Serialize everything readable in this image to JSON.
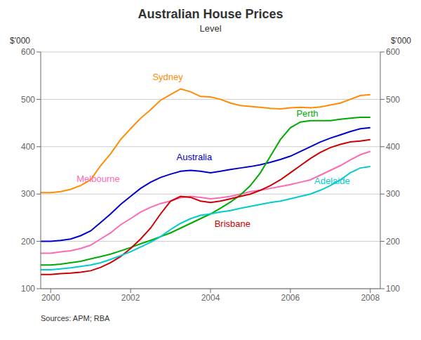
{
  "chart_data": {
    "type": "line",
    "title": "Australian House Prices",
    "subtitle": "Level",
    "ylabel": "$'000",
    "y2label": "$'000",
    "source": "Sources: APM; RBA",
    "xlim": [
      1999.75,
      2008.25
    ],
    "ylim": [
      100,
      600
    ],
    "y2lim": [
      100,
      600
    ],
    "xticks": [
      2000,
      2002,
      2004,
      2006,
      2008
    ],
    "yticks": [
      100,
      200,
      300,
      400,
      500,
      600
    ],
    "y2ticks": [
      100,
      200,
      300,
      400,
      500,
      600
    ],
    "grid": "y",
    "x": [
      1999.75,
      2000.0,
      2000.25,
      2000.5,
      2000.75,
      2001.0,
      2001.25,
      2001.5,
      2001.75,
      2002.0,
      2002.25,
      2002.5,
      2002.75,
      2003.0,
      2003.25,
      2003.5,
      2003.75,
      2004.0,
      2004.25,
      2004.5,
      2004.75,
      2005.0,
      2005.25,
      2005.5,
      2005.75,
      2006.0,
      2006.25,
      2006.5,
      2006.75,
      2007.0,
      2007.25,
      2007.5,
      2007.75,
      2008.0
    ],
    "series": [
      {
        "name": "Sydney",
        "color": "#FF8C00",
        "values": [
          303,
          303,
          305,
          310,
          318,
          330,
          360,
          385,
          415,
          438,
          460,
          478,
          498,
          510,
          522,
          516,
          506,
          505,
          500,
          492,
          487,
          485,
          483,
          481,
          480,
          482,
          483,
          482,
          484,
          488,
          492,
          500,
          508,
          510
        ]
      },
      {
        "name": "Melbourne",
        "color": "#FF69B4",
        "values": [
          175,
          175,
          178,
          180,
          185,
          192,
          205,
          218,
          235,
          248,
          262,
          272,
          280,
          285,
          292,
          295,
          293,
          290,
          292,
          295,
          300,
          305,
          308,
          312,
          316,
          320,
          325,
          330,
          340,
          350,
          360,
          372,
          383,
          390
        ]
      },
      {
        "name": "Australia",
        "color": "#0000CD",
        "values": [
          200,
          200,
          202,
          205,
          212,
          222,
          240,
          258,
          278,
          295,
          312,
          325,
          335,
          342,
          348,
          350,
          348,
          345,
          348,
          352,
          355,
          358,
          362,
          367,
          373,
          380,
          390,
          400,
          410,
          418,
          425,
          432,
          438,
          440
        ]
      },
      {
        "name": "Perth",
        "color": "#00AA00",
        "values": [
          150,
          150,
          152,
          155,
          158,
          163,
          168,
          173,
          180,
          187,
          195,
          202,
          210,
          218,
          228,
          238,
          248,
          258,
          270,
          283,
          298,
          318,
          345,
          380,
          415,
          440,
          452,
          455,
          455,
          455,
          458,
          460,
          462,
          462
        ]
      },
      {
        "name": "Brisbane",
        "color": "#CC0000",
        "values": [
          130,
          130,
          132,
          133,
          135,
          138,
          145,
          155,
          168,
          185,
          205,
          228,
          258,
          285,
          295,
          293,
          285,
          282,
          285,
          290,
          295,
          300,
          308,
          318,
          330,
          345,
          360,
          375,
          388,
          398,
          405,
          410,
          412,
          415
        ]
      },
      {
        "name": "Adelaide",
        "color": "#00CCCC",
        "values": [
          140,
          140,
          142,
          144,
          147,
          150,
          155,
          162,
          170,
          178,
          188,
          198,
          210,
          225,
          238,
          248,
          255,
          258,
          262,
          265,
          270,
          274,
          278,
          282,
          285,
          290,
          295,
          300,
          308,
          318,
          330,
          345,
          355,
          358
        ]
      }
    ],
    "annotations": [
      {
        "text": "Sydney",
        "x": 2002.55,
        "y": 537,
        "color": "#FF8C00"
      },
      {
        "text": "Melbourne",
        "x": 2000.65,
        "y": 322,
        "color": "#FF69B4"
      },
      {
        "text": "Australia",
        "x": 2003.15,
        "y": 368,
        "color": "#0000CD"
      },
      {
        "text": "Perth",
        "x": 2006.15,
        "y": 460,
        "color": "#00AA00"
      },
      {
        "text": "Brisbane",
        "x": 2004.1,
        "y": 228,
        "color": "#CC0000"
      },
      {
        "text": "Adelaide",
        "x": 2006.6,
        "y": 318,
        "color": "#00CCCC"
      }
    ]
  }
}
